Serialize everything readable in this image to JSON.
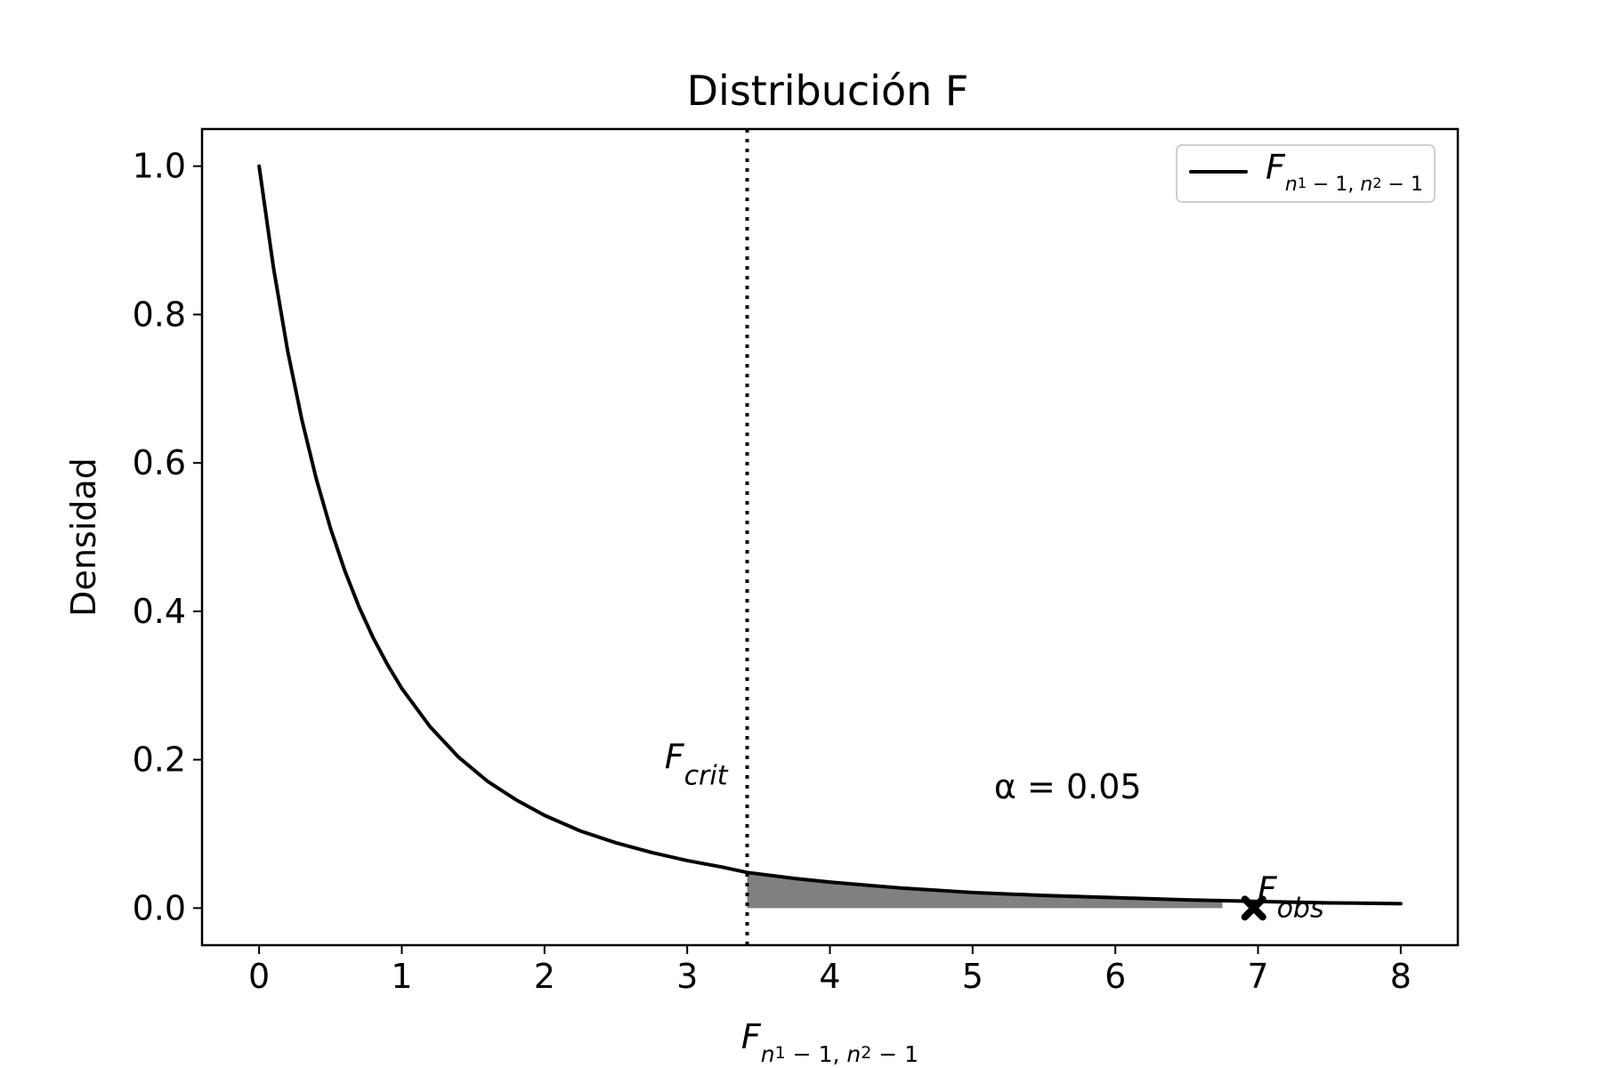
{
  "chart_data": {
    "type": "line",
    "title": "Distribución F",
    "xlabel": "F_{n_1-1,n_2-1}",
    "ylabel": "Densidad",
    "xlim": [
      -0.4,
      8.4
    ],
    "ylim": [
      -0.05,
      1.05
    ],
    "x_ticks": [
      0,
      1,
      2,
      3,
      4,
      5,
      6,
      7,
      8
    ],
    "y_ticks": [
      0.0,
      0.2,
      0.4,
      0.6,
      0.8,
      1.0
    ],
    "x_tick_labels": [
      "0",
      "1",
      "2",
      "3",
      "4",
      "5",
      "6",
      "7",
      "8"
    ],
    "y_tick_labels": [
      "0.0",
      "0.2",
      "0.4",
      "0.6",
      "0.8",
      "1.0"
    ],
    "grid": false,
    "legend": {
      "placement": "top-right",
      "entries": [
        "F_{n_1-1,n_2-1}"
      ]
    },
    "series": [
      {
        "name": "F_{n_1-1,n_2-1}",
        "x": [
          0.0,
          0.1,
          0.2,
          0.3,
          0.4,
          0.5,
          0.6,
          0.7,
          0.8,
          0.9,
          1.0,
          1.2,
          1.4,
          1.6,
          1.8,
          2.0,
          2.25,
          2.5,
          2.75,
          3.0,
          3.25,
          3.42,
          3.75,
          4.0,
          4.5,
          5.0,
          5.5,
          6.0,
          6.5,
          7.0,
          7.5,
          8.0
        ],
        "y": [
          1.0,
          0.864,
          0.751,
          0.658,
          0.579,
          0.512,
          0.455,
          0.406,
          0.364,
          0.328,
          0.296,
          0.244,
          0.203,
          0.171,
          0.146,
          0.125,
          0.104,
          0.088,
          0.075,
          0.064,
          0.055,
          0.048,
          0.04,
          0.035,
          0.027,
          0.021,
          0.017,
          0.014,
          0.011,
          0.009,
          0.007,
          0.006
        ]
      }
    ],
    "critical_line": {
      "x": 3.42,
      "label": "F_crit",
      "style": "dotted"
    },
    "shaded_region": {
      "x_start": 3.42,
      "x_end": 6.75,
      "color": "#808080"
    },
    "observed_point": {
      "x": 6.97,
      "y": 0.0,
      "label": "F_obs",
      "marker": "X"
    },
    "annotations": [
      {
        "text": "α = 0.05",
        "x": 5.15,
        "y": 0.16
      }
    ],
    "colors": {
      "line": "#000000",
      "fill": "#808080"
    }
  }
}
